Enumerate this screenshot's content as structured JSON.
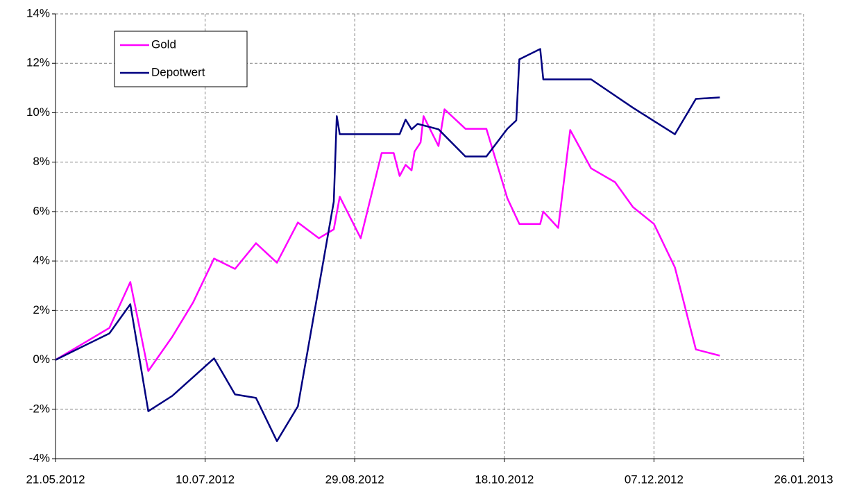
{
  "chart_data": {
    "type": "line",
    "xlim": [
      "21.05.2012",
      "26.01.2013"
    ],
    "xticks": [
      "21.05.2012",
      "10.07.2012",
      "29.08.2012",
      "18.10.2012",
      "07.12.2012",
      "26.01.2013"
    ],
    "ylim": [
      -4,
      14
    ],
    "yticks": [
      {
        "value": -4,
        "label": "-4%"
      },
      {
        "value": -2,
        "label": "-2%"
      },
      {
        "value": 0,
        "label": "0%"
      },
      {
        "value": 2,
        "label": "2%"
      },
      {
        "value": 4,
        "label": "4%"
      },
      {
        "value": 6,
        "label": "6%"
      },
      {
        "value": 8,
        "label": "8%"
      },
      {
        "value": 10,
        "label": "10%"
      },
      {
        "value": 12,
        "label": "12%"
      },
      {
        "value": 14,
        "label": "14%"
      }
    ],
    "grid": true,
    "legend": "upper left",
    "series": [
      {
        "name": "Gold",
        "color": "#ff00ff",
        "x": [
          "21.05.2012",
          "08.06.2012",
          "15.06.2012",
          "21.06.2012",
          "29.06.2012",
          "06.07.2012",
          "13.07.2012",
          "20.07.2012",
          "27.07.2012",
          "03.08.2012",
          "10.08.2012",
          "17.08.2012",
          "22.08.2012",
          "24.08.2012",
          "31.08.2012",
          "07.09.2012",
          "11.09.2012",
          "13.09.2012",
          "15.09.2012",
          "17.09.2012",
          "18.09.2012",
          "20.09.2012",
          "21.09.2012",
          "26.09.2012",
          "28.09.2012",
          "05.10.2012",
          "12.10.2012",
          "19.10.2012",
          "23.10.2012",
          "30.10.2012",
          "31.10.2012",
          "05.11.2012",
          "09.11.2012",
          "16.11.2012",
          "24.11.2012",
          "30.11.2012",
          "07.12.2012",
          "14.12.2012",
          "21.12.2012",
          "29.12.2012"
        ],
        "values": [
          0,
          1.29,
          3.15,
          -0.45,
          0.93,
          2.33,
          4.1,
          3.68,
          4.72,
          3.93,
          5.56,
          4.92,
          5.28,
          6.6,
          4.92,
          8.37,
          8.37,
          7.44,
          7.89,
          7.67,
          8.43,
          8.8,
          9.86,
          8.65,
          10.14,
          9.35,
          9.35,
          6.54,
          5.5,
          5.5,
          6.0,
          5.34,
          9.3,
          7.75,
          7.19,
          6.18,
          5.5,
          3.74,
          0.42,
          0.17
        ]
      },
      {
        "name": "Depotwert",
        "color": "#000080",
        "x": [
          "21.05.2012",
          "08.06.2012",
          "15.06.2012",
          "21.06.2012",
          "29.06.2012",
          "13.07.2012",
          "20.07.2012",
          "27.07.2012",
          "03.08.2012",
          "10.08.2012",
          "22.08.2012",
          "23.08.2012",
          "24.08.2012",
          "13.09.2012",
          "15.09.2012",
          "17.09.2012",
          "19.09.2012",
          "26.09.2012",
          "05.10.2012",
          "12.10.2012",
          "19.10.2012",
          "22.10.2012",
          "23.10.2012",
          "30.10.2012",
          "31.10.2012",
          "16.11.2012",
          "30.11.2012",
          "14.12.2012",
          "21.12.2012",
          "29.12.2012"
        ],
        "values": [
          0,
          1.07,
          2.25,
          -2.08,
          -1.46,
          0.06,
          -1.4,
          -1.54,
          -3.29,
          -1.88,
          6.4,
          9.86,
          9.13,
          9.13,
          9.72,
          9.33,
          9.55,
          9.33,
          8.23,
          8.23,
          9.35,
          9.69,
          12.16,
          12.58,
          11.35,
          11.35,
          10.2,
          9.13,
          10.56,
          10.62
        ]
      }
    ]
  }
}
